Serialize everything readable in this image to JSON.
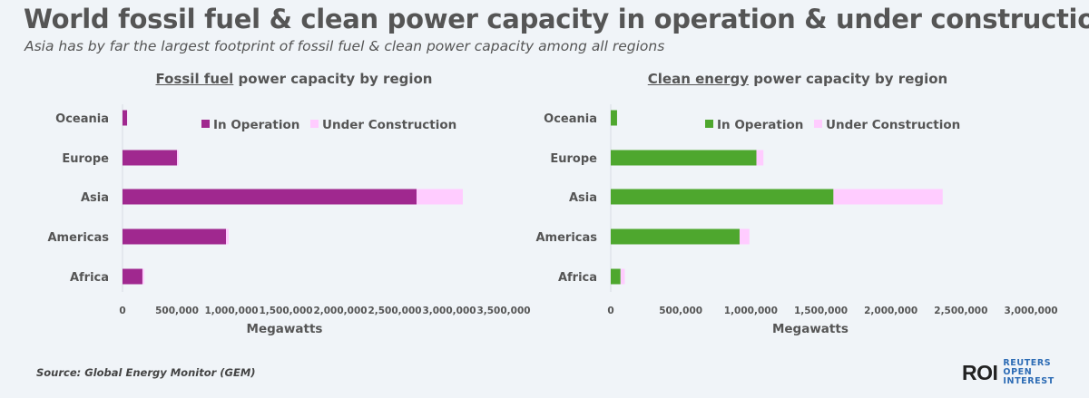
{
  "title": "World fossil fuel & clean power capacity in operation & under construction by region",
  "subtitle": "Asia has by far the largest footprint of fossil fuel & clean power capacity among all regions",
  "source": "Source:  Global Energy Monitor (GEM)",
  "logo": {
    "mark": "ROI",
    "name": "REUTERS OPEN INTEREST"
  },
  "colors": {
    "fossil_op": "#a0288f",
    "clean_op": "#4ea72e",
    "under_construction": "#ffccff"
  },
  "chart_data": [
    {
      "type": "bar",
      "orientation": "horizontal",
      "stacked": true,
      "title_underlined": "Fossil fuel",
      "title_rest": " power capacity by region",
      "categories": [
        "Oceania",
        "Europe",
        "Asia",
        "Americas",
        "Africa"
      ],
      "series": [
        {
          "name": "In Operation",
          "values": [
            42000,
            500000,
            2700000,
            950000,
            183000
          ]
        },
        {
          "name": "Under Construction",
          "values": [
            3000,
            15000,
            425000,
            25000,
            17000
          ]
        }
      ],
      "xlabel": "Megawatts",
      "xlim": [
        0,
        3500000
      ],
      "xticks": [
        "0",
        "500,000",
        "1,000,000",
        "1,500,000",
        "2,000,000",
        "2,500,000",
        "3,000,000",
        "3,500,000"
      ],
      "legend": "top-center",
      "grid": false
    },
    {
      "type": "bar",
      "orientation": "horizontal",
      "stacked": true,
      "title_underlined": "Clean energy",
      "title_rest": " power capacity by region",
      "categories": [
        "Oceania",
        "Europe",
        "Asia",
        "Americas",
        "Africa"
      ],
      "series": [
        {
          "name": "In Operation",
          "values": [
            45000,
            1040000,
            1590000,
            920000,
            70000
          ]
        },
        {
          "name": "Under Construction",
          "values": [
            0,
            50000,
            780000,
            70000,
            30000
          ]
        }
      ],
      "xlabel": "Megawatts",
      "xlim": [
        0,
        3000000
      ],
      "xticks": [
        "0",
        "500,000",
        "1,000,000",
        "1,500,000",
        "2,000,000",
        "2,500,000",
        "3,000,000"
      ],
      "legend": "top-center",
      "grid": false
    }
  ]
}
